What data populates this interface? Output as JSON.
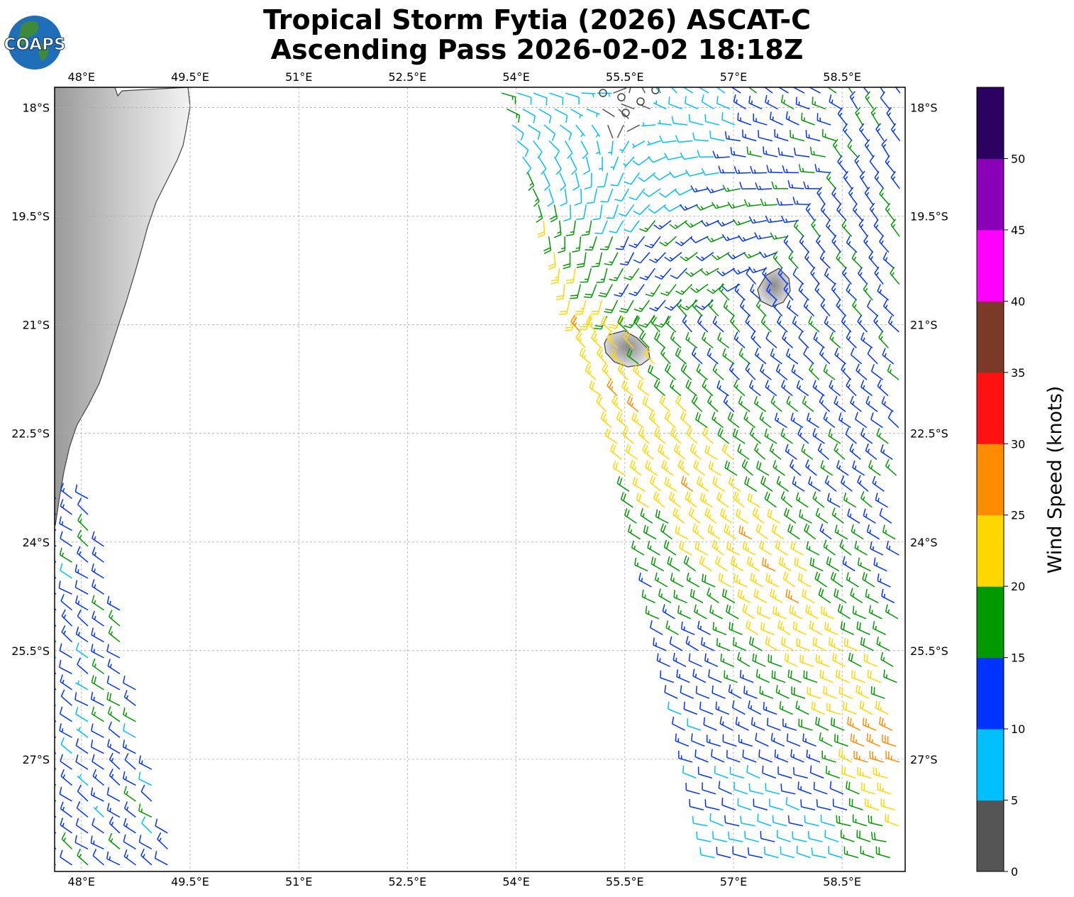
{
  "title": {
    "line1": "Tropical Storm Fytia (2026) ASCAT-C",
    "line2": "Ascending Pass 2026-02-02 18:18Z"
  },
  "logo": {
    "text": "COAPS",
    "icon": "globe-icon"
  },
  "map": {
    "lon_range": [
      47.63,
      59.37
    ],
    "lat_range": [
      -28.55,
      -17.72
    ],
    "lon_ticks": [
      "48°E",
      "49.5°E",
      "51°E",
      "52.5°E",
      "54°E",
      "55.5°E",
      "57°E",
      "58.5°E"
    ],
    "lat_ticks": [
      "18°S",
      "19.5°S",
      "21°S",
      "22.5°S",
      "24°S",
      "25.5°S",
      "27°S"
    ],
    "grid": true,
    "land": [
      "Madagascar (east coast)",
      "Réunion",
      "Mauritius"
    ]
  },
  "colorbar": {
    "label": "Wind Speed (knots)",
    "ticks": [
      "0",
      "5",
      "10",
      "15",
      "20",
      "25",
      "30",
      "35",
      "40",
      "45",
      "50"
    ],
    "colors": [
      "#555555",
      "#00bfff",
      "#0033ff",
      "#009900",
      "#ffd700",
      "#ff8c00",
      "#ff1111",
      "#7b3a28",
      "#ff00ff",
      "#8a00b8",
      "#2a0060"
    ]
  },
  "chart_data": {
    "type": "wind-barb-map",
    "units": "knots",
    "swaths": [
      {
        "name": "west",
        "lon": [
          47.7,
          49.3
        ],
        "lat": [
          -28.5,
          -23.3
        ],
        "speed_range_kt": [
          5,
          20
        ],
        "dominant_speed_kt": 12
      },
      {
        "name": "east",
        "lon": [
          53.8,
          59.3
        ],
        "lat": [
          -28.5,
          -17.72
        ],
        "speed_range_kt": [
          0,
          30
        ],
        "dominant_speed_kt": 15
      }
    ],
    "max_wind_kt": 27,
    "max_wind_location": {
      "lon": 54.7,
      "lat": -21.8
    }
  }
}
